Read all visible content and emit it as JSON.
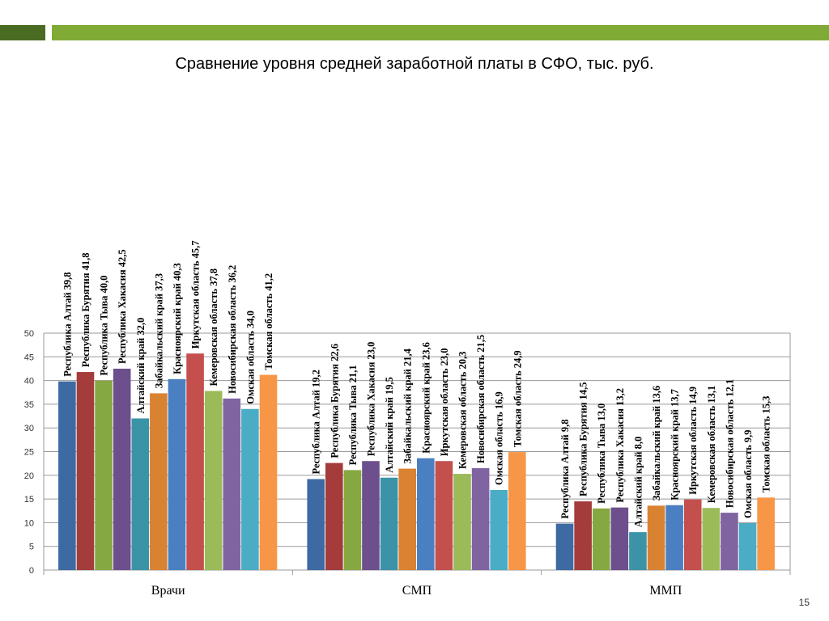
{
  "slide": {
    "title": "Сравнение уровня средней заработной платы в СФО, тыс. руб.",
    "page_number": "15",
    "accent_colors": [
      "#4a6b22",
      "#7faa35"
    ]
  },
  "chart_data": {
    "type": "bar",
    "title": "",
    "xlabel": "",
    "ylabel": "",
    "ylim": [
      0,
      50
    ],
    "yticks": [
      0,
      5,
      10,
      15,
      20,
      25,
      30,
      35,
      40,
      45,
      50
    ],
    "grid": true,
    "categories": [
      "Врачи",
      "СМП",
      "ММП"
    ],
    "series": [
      {
        "name": "Республика Алтай",
        "color": "#3d6aa3",
        "values": [
          39.8,
          19.2,
          9.8
        ]
      },
      {
        "name": "Республика Бурятия",
        "color": "#a33c3a",
        "values": [
          41.8,
          22.6,
          14.5
        ]
      },
      {
        "name": "Республика Тыва",
        "color": "#86a843",
        "values": [
          40.0,
          21.1,
          13.0
        ]
      },
      {
        "name": "Республика Хакасия",
        "color": "#6c4f8c",
        "values": [
          42.5,
          23.0,
          13.2
        ]
      },
      {
        "name": "Алтайский край",
        "color": "#3b93a8",
        "values": [
          32.0,
          19.5,
          8.0
        ]
      },
      {
        "name": "Забайкальский край",
        "color": "#d98232",
        "values": [
          37.3,
          21.4,
          13.6
        ]
      },
      {
        "name": "Красноярский край",
        "color": "#4a7fc2",
        "values": [
          40.3,
          23.6,
          13.7
        ]
      },
      {
        "name": "Иркутская область",
        "color": "#c4504d",
        "values": [
          45.7,
          23.0,
          14.9
        ]
      },
      {
        "name": "Кемеровская область",
        "color": "#9bbb59",
        "values": [
          37.8,
          20.3,
          13.1
        ]
      },
      {
        "name": "Новосибирская область",
        "color": "#8064a2",
        "values": [
          36.2,
          21.5,
          12.1
        ]
      },
      {
        "name": "Омская область",
        "color": "#4bacc6",
        "values": [
          34.0,
          16.9,
          9.9
        ]
      },
      {
        "name": "Томская область",
        "color": "#f79646",
        "values": [
          41.2,
          24.9,
          15.3
        ]
      }
    ],
    "value_labels": [
      [
        "Республика Алтай  39,8",
        "Республика Бурятия  41,8",
        "Республика Тыва  40,0",
        "Республика Хакасия  42,5",
        "Алтайский край  32,0",
        "Забайкальский край  37,3",
        "Красноярский край  40,3",
        "Иркутская область  45,7",
        "Кемеровская область  37,8",
        "Новосибирская область  36,2",
        "Омская область  34,0",
        "Томская область  41,2"
      ],
      [
        "Республика Алтай  19,2",
        "Республика Бурятия  22,6",
        "Республика Тыва  21,1",
        "Республика Хакасия  23,0",
        "Алтайский край  19,5",
        "Забайкальский край  21,4",
        "Красноярский край  23,6",
        "Иркутская область  23,0",
        "Кемеровская область  20,3",
        "Новосибирская область  21,5",
        "Омская область  16,9",
        "Томская область  24,9"
      ],
      [
        "Республика Алтай  9,8",
        "Республика Бурятия  14,5",
        "Республика Тыва  13,0",
        "Республика Хакасия  13,2",
        "Алтайский край  8,0",
        "Забайкальский край  13,6",
        "Красноярский край  13,7",
        "Иркутская область  14,9",
        "Кемеровская область  13,1",
        "Новосибирская область  12,1",
        "Омская область  9,9",
        "Томская область  15,3"
      ]
    ]
  }
}
